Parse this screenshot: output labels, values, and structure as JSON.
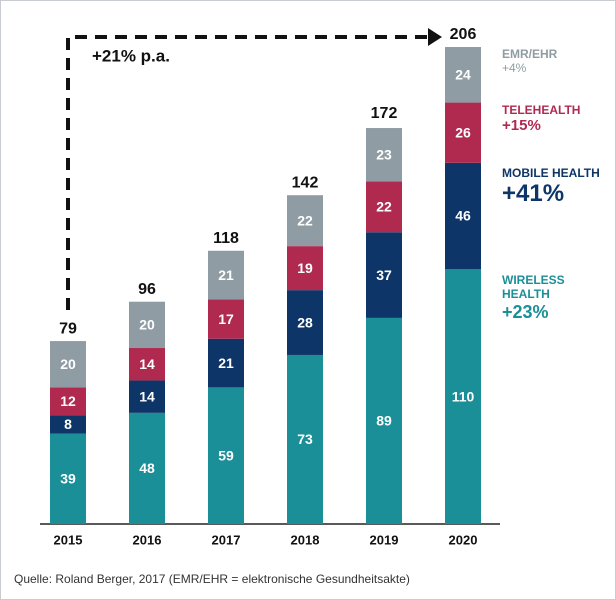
{
  "chart_data": {
    "type": "stacked-bar",
    "annotation": "+21% p.a.",
    "source": "Quelle: Roland Berger, 2017 (EMR/EHR = elektronische Gesundheitsakte)",
    "categories": [
      "2015",
      "2016",
      "2017",
      "2018",
      "2019",
      "2020"
    ],
    "totals": [
      79,
      96,
      118,
      142,
      172,
      206
    ],
    "series": [
      {
        "name": "WIRELESS HEALTH",
        "growth": "+23%",
        "color": "#1b8f97",
        "values": [
          39,
          48,
          59,
          73,
          89,
          110
        ]
      },
      {
        "name": "MOBILE HEALTH",
        "growth": "+41%",
        "color": "#0d3567",
        "values": [
          8,
          14,
          21,
          28,
          37,
          46
        ]
      },
      {
        "name": "TELEHEALTH",
        "growth": "+15%",
        "color": "#b02a50",
        "values": [
          12,
          14,
          17,
          19,
          22,
          26
        ]
      },
      {
        "name": "EMR/EHR",
        "growth": "+4%",
        "color": "#8f9ca4",
        "values": [
          20,
          20,
          21,
          22,
          23,
          24
        ]
      }
    ]
  }
}
